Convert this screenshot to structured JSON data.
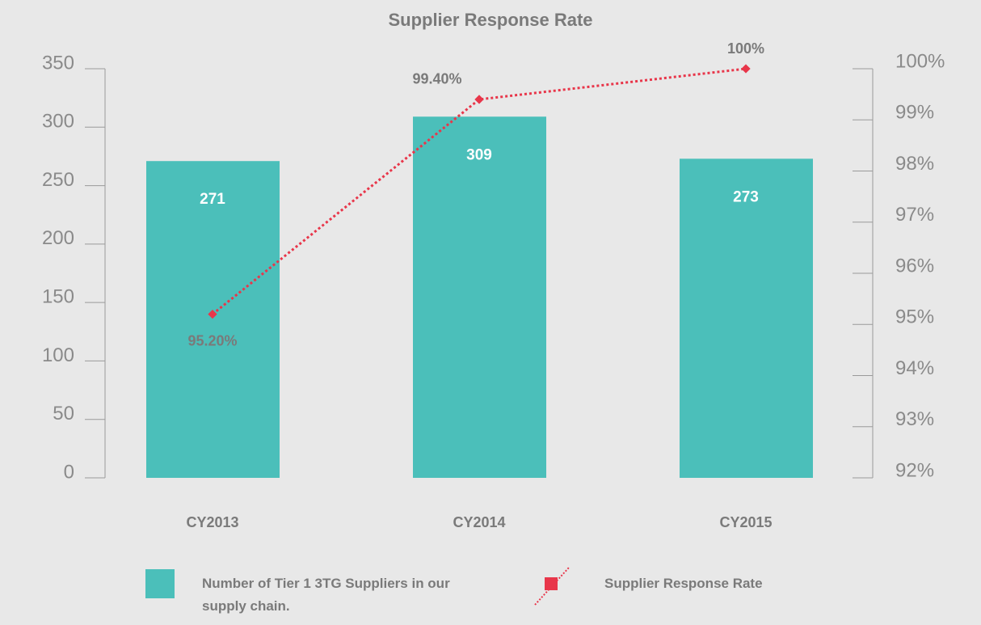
{
  "chart_data": {
    "type": "bar_line",
    "title": "Supplier Response Rate",
    "categories": [
      "CY2013",
      "CY2014",
      "CY2015"
    ],
    "series": [
      {
        "name": "Number of Tier 1 3TG Suppliers in our supply chain.",
        "color": "#4bbfba",
        "values": [
          271,
          309,
          273
        ]
      },
      {
        "name": "Supplier Response Rate",
        "color": "#e8364a",
        "values": [
          95.2,
          99.4,
          100
        ],
        "value_labels": [
          "95.20%",
          "99.40%",
          "100%"
        ],
        "axis": "y2"
      }
    ],
    "ylim": [
      0,
      350
    ],
    "yticks": [
      0,
      50,
      100,
      150,
      200,
      250,
      300,
      350
    ],
    "y2lim": [
      92,
      100
    ],
    "y2ticks": [
      {
        "value": 92,
        "label": "92%"
      },
      {
        "value": 93,
        "label": "93%"
      },
      {
        "value": 94,
        "label": "94%"
      },
      {
        "value": 95,
        "label": "95%"
      },
      {
        "value": 96,
        "label": "96%"
      },
      {
        "value": 97,
        "label": "97%"
      },
      {
        "value": 98,
        "label": "98%"
      },
      {
        "value": 99,
        "label": "99%"
      },
      {
        "value": 100,
        "label": "100%"
      }
    ]
  }
}
